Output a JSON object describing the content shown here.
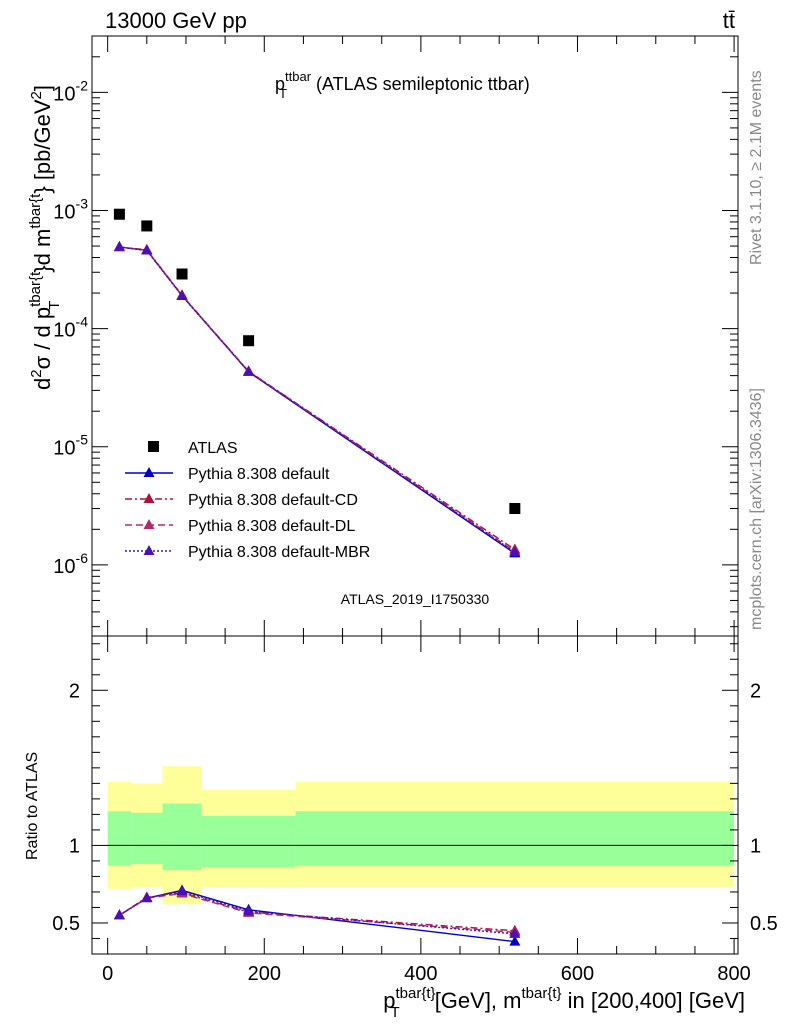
{
  "header": {
    "energy": "13000 GeV pp",
    "process": "tt̄"
  },
  "sidebar": {
    "rivet": "Rivet 3.1.10, ≥ 2.1M events",
    "source": "mcplots.cern.ch [arXiv:1306.3436]"
  },
  "chart_data": [
    {
      "type": "line",
      "title": "p_T^ttbar (ATLAS semileptonic ttbar)",
      "watermark": "ATLAS_2019_I1750330",
      "ylabel": "d²σ / d p_T^tbar{t}d m^tbar{t} [pb/GeV²]",
      "yscale": "log",
      "ylim": [
        2.5e-07,
        0.03
      ],
      "xlim": [
        -20,
        805
      ],
      "yticks": [
        {
          "value": 0.01,
          "base": "10",
          "exp": "-2"
        },
        {
          "value": 0.001,
          "base": "10",
          "exp": "-3"
        },
        {
          "value": 0.0001,
          "base": "10",
          "exp": "-4"
        },
        {
          "value": 1e-05,
          "base": "10",
          "exp": "-5"
        },
        {
          "value": 1e-06,
          "base": "10",
          "exp": "-6"
        }
      ],
      "legend_position": "bottom-left",
      "series": [
        {
          "name": "ATLAS",
          "marker": "square",
          "color": "#000000",
          "dash": "none",
          "x": [
            15,
            50,
            95,
            180,
            520
          ],
          "y": [
            0.00093,
            0.00074,
            0.00029,
            7.9e-05,
            3e-06
          ]
        },
        {
          "name": "Pythia 8.308 default",
          "marker": "triangle",
          "color": "#0000cc",
          "dash": "solid",
          "x": [
            15,
            50,
            95,
            180,
            520
          ],
          "y": [
            0.00049,
            0.00046,
            0.00019,
            4.3e-05,
            1.25e-06
          ]
        },
        {
          "name": "Pythia 8.308 default-CD",
          "marker": "triangle",
          "color": "#b0103c",
          "dash": "dashdot",
          "x": [
            15,
            50,
            95,
            180,
            520
          ],
          "y": [
            0.00049,
            0.000465,
            0.000192,
            4.35e-05,
            1.35e-06
          ]
        },
        {
          "name": "Pythia 8.308 default-DL",
          "marker": "triangle",
          "color": "#b02a6e",
          "dash": "dashed",
          "x": [
            15,
            50,
            95,
            180,
            520
          ],
          "y": [
            0.00049,
            0.000462,
            0.00019,
            4.35e-05,
            1.3e-06
          ]
        },
        {
          "name": "Pythia 8.308 default-MBR",
          "marker": "triangle",
          "color": "#4a10b8",
          "dash": "dotted",
          "x": [
            15,
            50,
            95,
            180,
            520
          ],
          "y": [
            0.000492,
            0.000458,
            0.000189,
            4.32e-05,
            1.28e-06
          ]
        }
      ]
    },
    {
      "type": "line",
      "xlabel": "p_T^tbar{t}[GeV], m^tbar{t} in [200,400] [GeV]",
      "ylabel": "Ratio to ATLAS",
      "ylim": [
        0.3,
        2.35
      ],
      "xlim": [
        -20,
        805
      ],
      "xticks": [
        0,
        200,
        400,
        600,
        800
      ],
      "yticks": [
        0.5,
        1,
        2
      ],
      "bands": {
        "x_edges": [
          0,
          30,
          70,
          120,
          240,
          800
        ],
        "yellow": [
          [
            0.72,
            1.41
          ],
          [
            0.73,
            1.4
          ],
          [
            0.62,
            1.51
          ],
          [
            0.73,
            1.36
          ],
          [
            0.73,
            1.41
          ]
        ],
        "green": [
          [
            0.87,
            1.22
          ],
          [
            0.88,
            1.21
          ],
          [
            0.84,
            1.27
          ],
          [
            0.86,
            1.19
          ],
          [
            0.87,
            1.22
          ]
        ],
        "yellow_color": "#ffff99",
        "green_color": "#99ff99"
      },
      "series": [
        {
          "name": "Pythia 8.308 default",
          "color": "#0000cc",
          "dash": "solid",
          "x": [
            15,
            50,
            95,
            180,
            520
          ],
          "y": [
            0.55,
            0.66,
            0.71,
            0.585,
            0.38
          ]
        },
        {
          "name": "Pythia 8.308 default-CD",
          "color": "#b0103c",
          "dash": "dashdot",
          "x": [
            15,
            50,
            95,
            180,
            520
          ],
          "y": [
            0.55,
            0.665,
            0.695,
            0.57,
            0.45
          ]
        },
        {
          "name": "Pythia 8.308 default-DL",
          "color": "#b02a6e",
          "dash": "dashed",
          "x": [
            15,
            50,
            95,
            180,
            520
          ],
          "y": [
            0.55,
            0.66,
            0.69,
            0.565,
            0.44
          ]
        },
        {
          "name": "Pythia 8.308 default-MBR",
          "color": "#4a10b8",
          "dash": "dotted",
          "x": [
            15,
            50,
            95,
            180,
            520
          ],
          "y": [
            0.55,
            0.66,
            0.705,
            0.575,
            0.43
          ]
        }
      ]
    }
  ]
}
